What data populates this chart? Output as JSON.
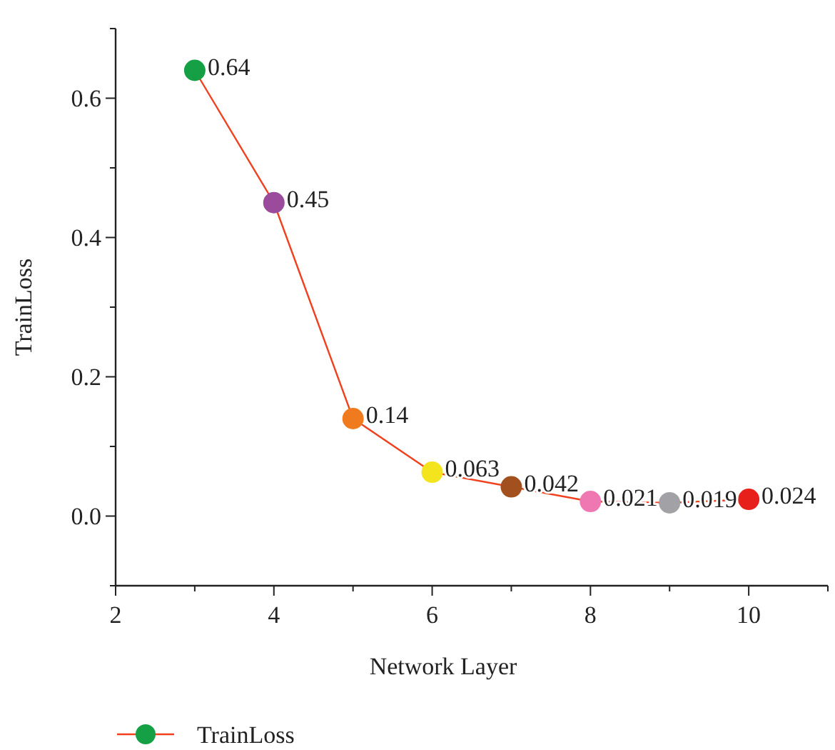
{
  "chart_data": {
    "type": "line",
    "xlabel": "Network Layer",
    "ylabel": "TrainLoss",
    "x": [
      3,
      4,
      5,
      6,
      7,
      8,
      9,
      10
    ],
    "series": [
      {
        "name": "TrainLoss",
        "color": "#f0401e",
        "values": [
          0.64,
          0.45,
          0.14,
          0.063,
          0.042,
          0.021,
          0.019,
          0.024
        ],
        "colors": [
          "#15a046",
          "#9a4b9c",
          "#f07a1e",
          "#f3e41e",
          "#a3501f",
          "#ef78b2",
          "#a2a2a6",
          "#e8201c"
        ]
      }
    ],
    "xlim": [
      2,
      11
    ],
    "xticks": [
      2,
      {
        "value": 3,
        "label": null
      },
      4,
      {
        "value": 5,
        "label": null
      },
      6,
      {
        "value": 7,
        "label": null
      },
      8,
      {
        "value": 9,
        "label": null
      },
      10,
      {
        "value": 11,
        "label": null
      }
    ],
    "ylim": [
      -0.1,
      0.7
    ],
    "yticks": [
      {
        "value": -0.1,
        "label": null
      },
      {
        "value": 0,
        "label": "0.0"
      },
      {
        "value": 0.1,
        "label": null
      },
      0.2,
      {
        "value": 0.3,
        "label": null
      },
      0.4,
      {
        "value": 0.5,
        "label": null
      },
      0.6,
      {
        "value": 0.7,
        "label": null
      }
    ],
    "marker": "circle",
    "line_style": "solid",
    "data_labels": true,
    "grid": false,
    "legend": "bottom left"
  }
}
